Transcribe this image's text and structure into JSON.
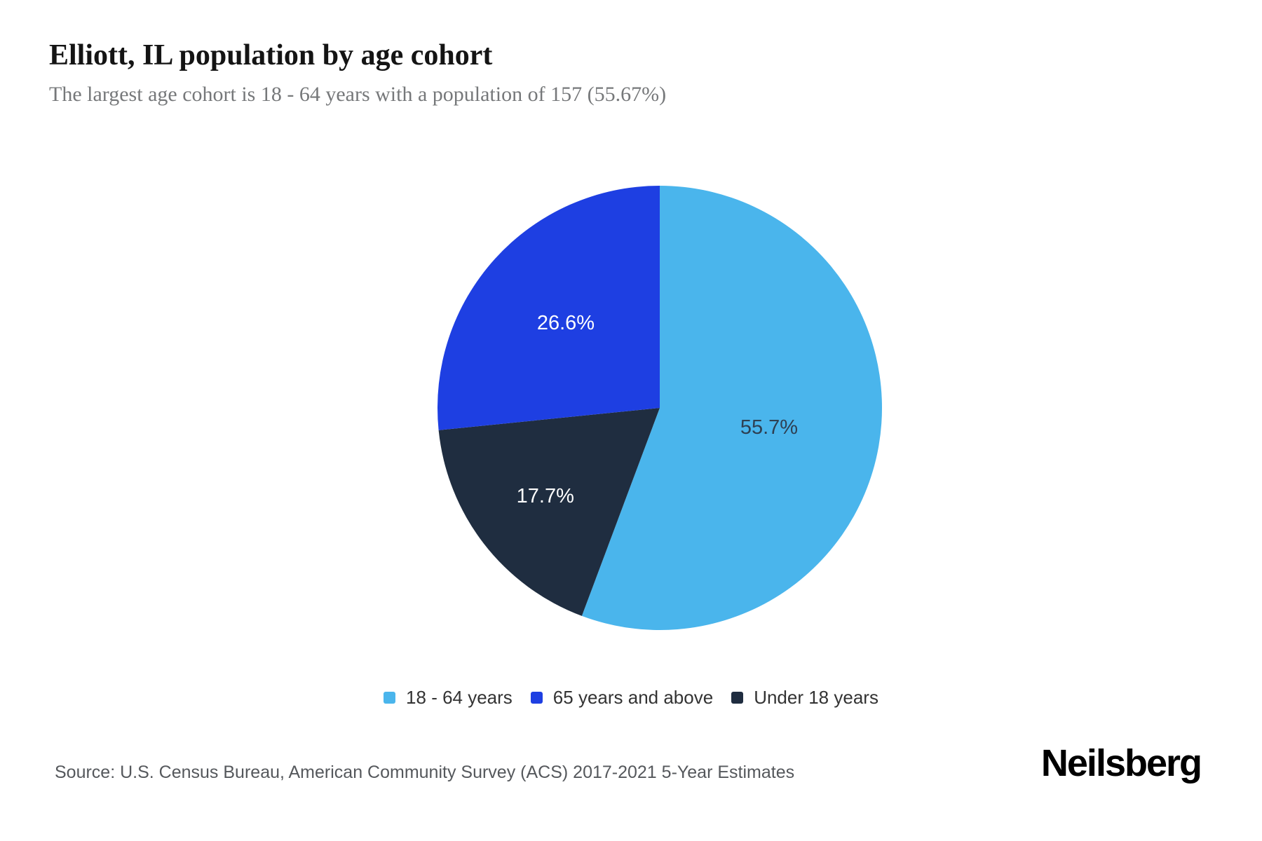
{
  "header": {
    "title": "Elliott, IL population by age cohort",
    "subtitle": "The largest age cohort is 18 - 64 years with a population of 157 (55.67%)"
  },
  "chart_data": {
    "type": "pie",
    "title": "Elliott, IL population by age cohort",
    "start_angle_deg": 0,
    "direction": "clockwise",
    "slices": [
      {
        "label": "18 - 64 years",
        "percent": 55.7,
        "display": "55.7%",
        "color": "#4AB5EC",
        "label_color": "#2E4053"
      },
      {
        "label": "Under 18 years",
        "percent": 17.7,
        "display": "17.7%",
        "color": "#1F2D40",
        "label_color": "#ffffff"
      },
      {
        "label": "65 years and above",
        "percent": 26.6,
        "display": "26.6%",
        "color": "#1E3FE2",
        "label_color": "#ffffff"
      }
    ],
    "legend": [
      {
        "label": "18 - 64 years",
        "color": "#4AB5EC"
      },
      {
        "label": "65 years and above",
        "color": "#1E3FE2"
      },
      {
        "label": "Under 18 years",
        "color": "#1F2D40"
      }
    ],
    "legend_position": "bottom",
    "largest_cohort": {
      "label": "18 - 64 years",
      "population": 157,
      "percent_exact": "55.67%"
    }
  },
  "footer": {
    "source": "Source: U.S. Census Bureau, American Community Survey (ACS) 2017-2021 5-Year Estimates",
    "brand": "Neilsberg"
  }
}
